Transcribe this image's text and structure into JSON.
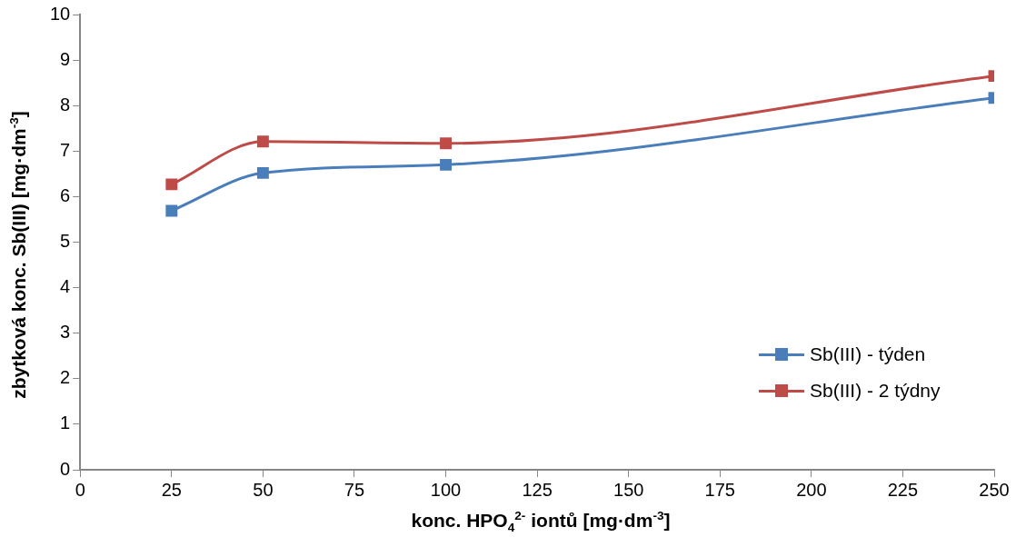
{
  "chart_data": {
    "type": "line",
    "xlabel": "konc. HPO$_{4}$$^{2-}$ iontů [mg·dm$^{-3}$]",
    "ylabel": "zbytková konc. Sb(III) [mg·dm$^{-3}$]",
    "x": [
      25,
      50,
      100,
      250
    ],
    "series": [
      {
        "name": "Sb(III) - týden",
        "color": "#4a7ebb",
        "values": [
          5.69,
          6.52,
          6.7,
          8.17
        ]
      },
      {
        "name": "Sb(III) - 2 týdny",
        "color": "#be4b48",
        "values": [
          6.27,
          7.21,
          7.17,
          8.65
        ]
      }
    ],
    "xlim": [
      0,
      250
    ],
    "xticks": [
      0,
      25,
      50,
      75,
      100,
      125,
      150,
      175,
      200,
      225,
      250
    ],
    "ylim": [
      0,
      10
    ],
    "yticks": [
      0,
      1,
      2,
      3,
      4,
      5,
      6,
      7,
      8,
      9,
      10
    ],
    "legend": "bottom right",
    "marker": "square",
    "line_style": "solid"
  }
}
